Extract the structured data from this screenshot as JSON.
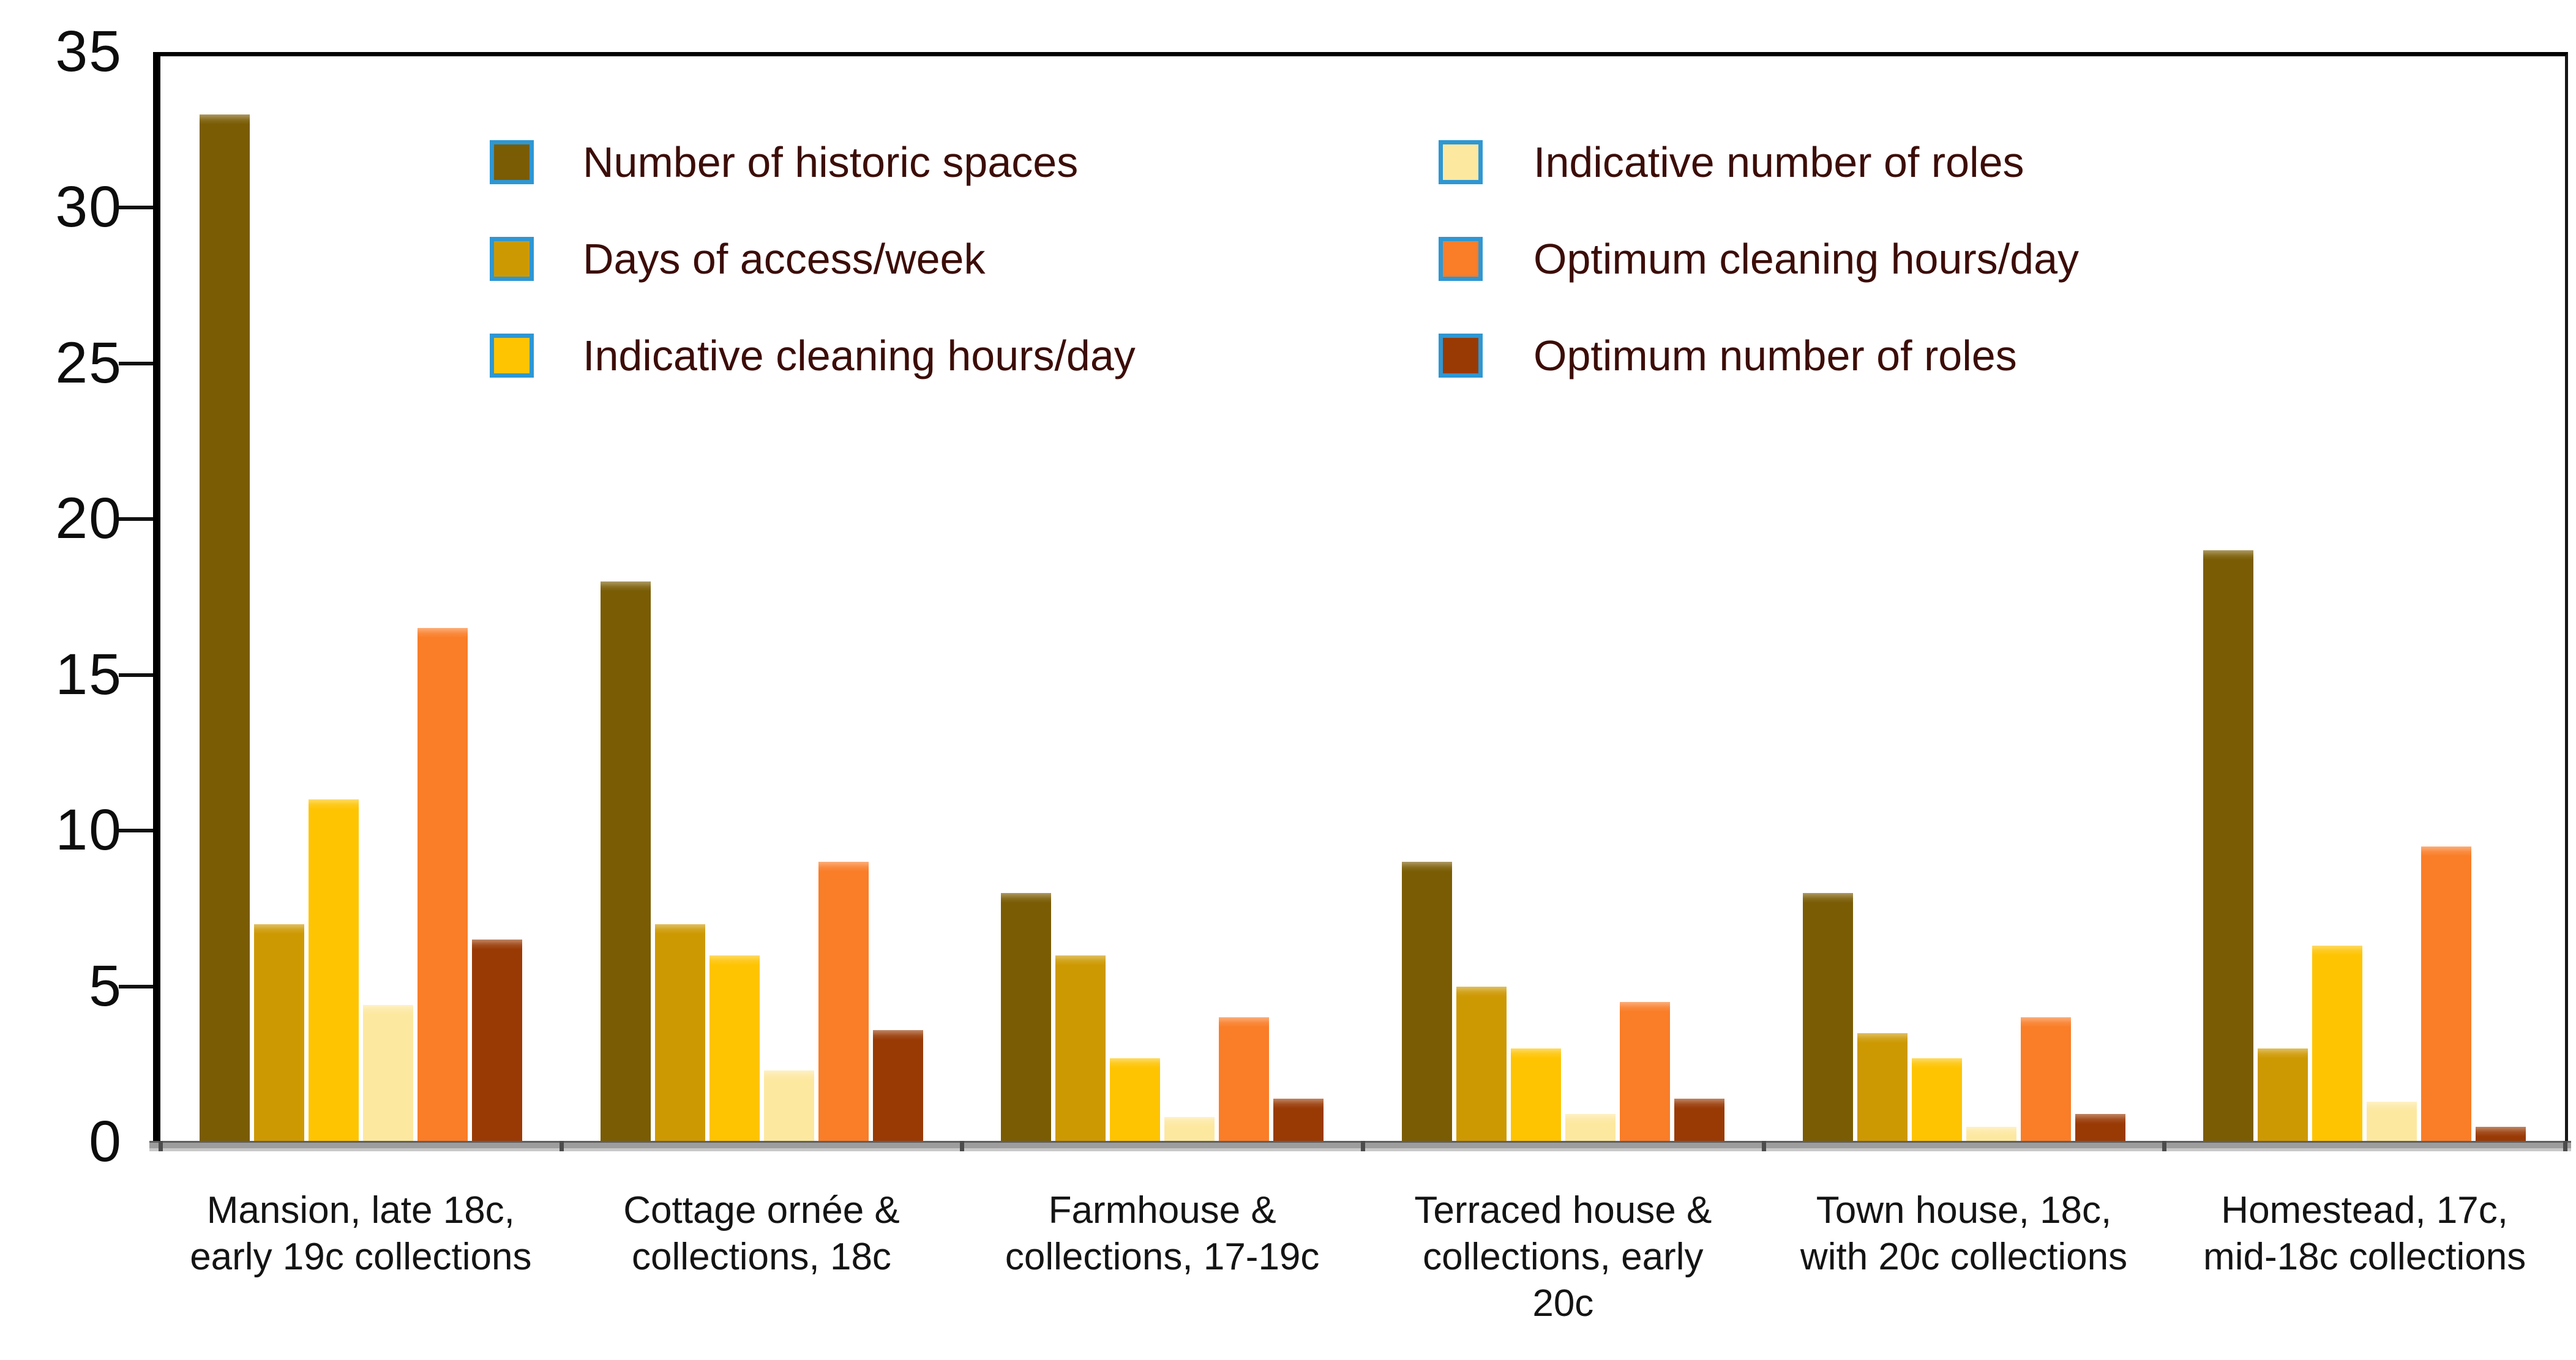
{
  "chart_data": {
    "type": "bar",
    "title": "",
    "xlabel": "",
    "ylabel": "",
    "ylim": [
      0,
      35
    ],
    "yticks": [
      0,
      5,
      10,
      15,
      20,
      25,
      30,
      35
    ],
    "grid": false,
    "legend_position": "top-inside",
    "categories": [
      {
        "lines": [
          "Mansion, late 18c,",
          "early 19c collections"
        ]
      },
      {
        "lines": [
          "Cottage ornée &",
          "collections, 18c"
        ]
      },
      {
        "lines": [
          "Farmhouse &",
          "collections, 17-19c"
        ]
      },
      {
        "lines": [
          "Terraced house &",
          "collections, early",
          "20c"
        ]
      },
      {
        "lines": [
          "Town house, 18c,",
          "with 20c collections"
        ]
      },
      {
        "lines": [
          "Homestead, 17c,",
          "mid-18c collections"
        ]
      }
    ],
    "series": [
      {
        "name": "Number of historic spaces",
        "color": "#7a5c04",
        "values": [
          33,
          18,
          8,
          9,
          8,
          19
        ]
      },
      {
        "name": "Days of access/week",
        "color": "#cd9903",
        "values": [
          7,
          7,
          6,
          5,
          3.5,
          3
        ]
      },
      {
        "name": "Indicative cleaning hours/day",
        "color": "#fec402",
        "values": [
          11,
          6,
          2.7,
          3,
          2.7,
          6.3
        ]
      },
      {
        "name": "Indicative number of roles",
        "color": "#fde8a0",
        "values": [
          4.4,
          2.3,
          0.8,
          0.9,
          0.5,
          1.3
        ]
      },
      {
        "name": "Optimum cleaning hours/day",
        "color": "#fa7d28",
        "values": [
          16.5,
          9,
          4,
          4.5,
          4,
          9.5
        ]
      },
      {
        "name": "Optimum number of roles",
        "color": "#993a05",
        "values": [
          6.5,
          3.6,
          1.4,
          1.4,
          0.9,
          0.5
        ]
      }
    ]
  },
  "legend": {
    "swatch_border_color": "#2e97d3",
    "text_color": "#3c0d08",
    "columns": [
      {
        "series_indexes": [
          0,
          1,
          2
        ]
      },
      {
        "series_indexes": [
          3,
          4,
          5
        ]
      }
    ]
  },
  "axis": {
    "line_color": "#000000",
    "bottom_band_color": "#9d9d9d",
    "tick_label_color": "#0d0d0d"
  }
}
